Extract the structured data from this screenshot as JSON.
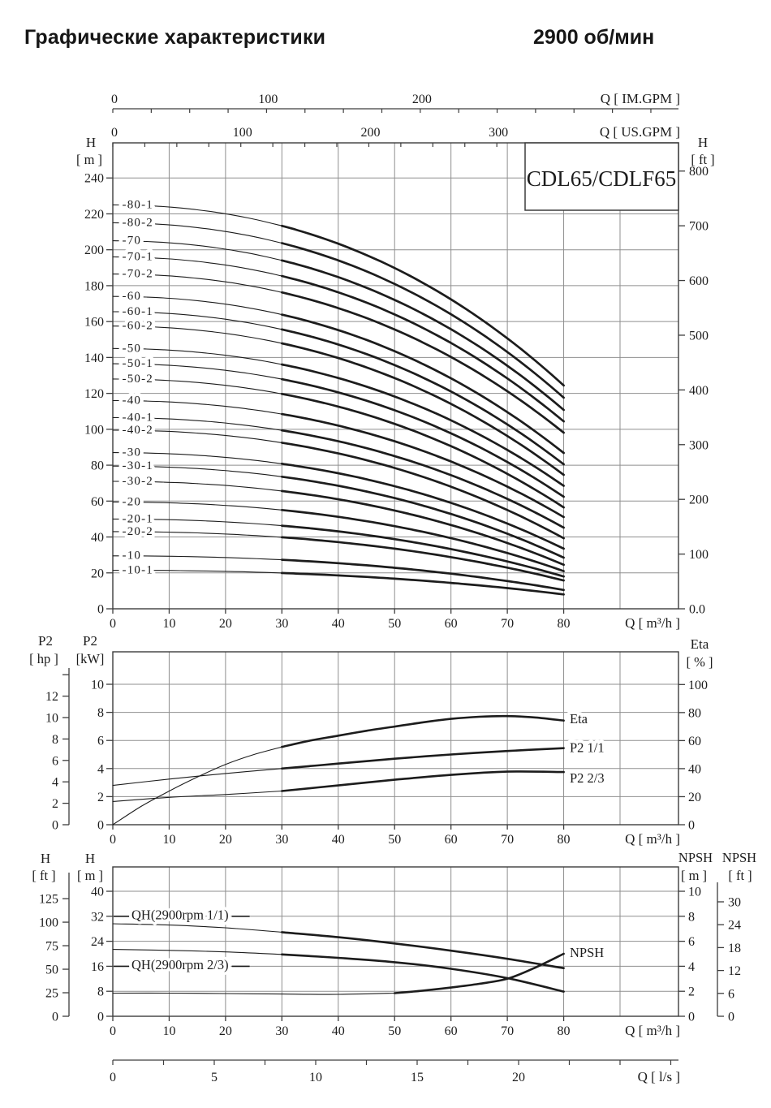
{
  "header": {
    "title": "Графические характеристики",
    "rpm": "2900 об/мин"
  },
  "pump_model": "CDL65/CDLF65",
  "colors": {
    "ink": "#1c1c1c",
    "grid": "#8f8f8f",
    "frame": "#3d3d3d",
    "background": "#ffffff"
  },
  "chart_data": [
    {
      "type": "line",
      "id": "qh-family",
      "title": "CDL65/CDLF65",
      "xlabel": "Q [ m³/h ]",
      "xlim": [
        0,
        100
      ],
      "x_ticks": [
        0,
        10,
        20,
        30,
        40,
        50,
        60,
        70,
        80
      ],
      "left_axis": {
        "title": "H",
        "unit": "[ m ]",
        "ylim": [
          0,
          260
        ],
        "ticks": [
          0,
          20,
          40,
          60,
          80,
          100,
          120,
          140,
          160,
          180,
          200,
          220,
          240
        ]
      },
      "right_axis": {
        "title": "H",
        "unit": "[ ft ]",
        "ticks": [
          {
            "v": 800,
            "label": "800"
          },
          {
            "v": 700,
            "label": "700"
          },
          {
            "v": 600,
            "label": "600"
          },
          {
            "v": 500,
            "label": "500"
          },
          {
            "v": 400,
            "label": "400"
          },
          {
            "v": 300,
            "label": "300"
          },
          {
            "v": 200,
            "label": "200"
          },
          {
            "v": 100,
            "label": "100"
          },
          {
            "v": 0,
            "label": "0.0"
          }
        ]
      },
      "top_axes": [
        {
          "label": "Q [ IM.GPM ]",
          "major_ticks": [
            0,
            100,
            200
          ],
          "minor_step_units": 25,
          "units_per_m3h": 3.66615
        },
        {
          "label": "Q [ US.GPM ]",
          "major_ticks": [
            0,
            100,
            200,
            300
          ],
          "minor_step_units": 25,
          "units_per_m3h": 4.40287
        }
      ],
      "bold_from_q": 30,
      "series": [
        {
          "name": "-80-1",
          "h0_m": 225,
          "h80_m": 124.4
        },
        {
          "name": "-80-2",
          "h0_m": 215,
          "h80_m": 117.6
        },
        {
          "name": "-70",
          "h0_m": 205,
          "h80_m": 110.8
        },
        {
          "name": "-70-1",
          "h0_m": 196,
          "h80_m": 104.4
        },
        {
          "name": "-70-2",
          "h0_m": 186.5,
          "h80_m": 98.1
        },
        {
          "name": "-60",
          "h0_m": 174,
          "h80_m": 86.8
        },
        {
          "name": "-60-1",
          "h0_m": 165.5,
          "h80_m": 80.5
        },
        {
          "name": "-60-2",
          "h0_m": 157.5,
          "h80_m": 74.6
        },
        {
          "name": "-50",
          "h0_m": 145,
          "h80_m": 68.5
        },
        {
          "name": "-50-1",
          "h0_m": 136.5,
          "h80_m": 62.4
        },
        {
          "name": "-50-2",
          "h0_m": 128,
          "h80_m": 56.5
        },
        {
          "name": "-40",
          "h0_m": 116,
          "h80_m": 51.1
        },
        {
          "name": "-40-1",
          "h0_m": 106.5,
          "h80_m": 45.2
        },
        {
          "name": "-40-2",
          "h0_m": 99.5,
          "h80_m": 39.3
        },
        {
          "name": "-30",
          "h0_m": 87,
          "h80_m": 33.5
        },
        {
          "name": "-30-1",
          "h0_m": 79.5,
          "h80_m": 28.5
        },
        {
          "name": "-30-2",
          "h0_m": 71,
          "h80_m": 24.5
        },
        {
          "name": "-20",
          "h0_m": 59.5,
          "h80_m": 21.0
        },
        {
          "name": "-20-1",
          "h0_m": 50,
          "h80_m": 18.0
        },
        {
          "name": "-20-2",
          "h0_m": 43,
          "h80_m": 15.8
        },
        {
          "name": "-10",
          "h0_m": 29.5,
          "h80_m": 10.5
        },
        {
          "name": "-10-1",
          "h0_m": 21.5,
          "h80_m": 8.0
        }
      ]
    },
    {
      "type": "line",
      "id": "power-efficiency",
      "xlabel": "Q [ m³/h ]",
      "x_ticks": [
        0,
        10,
        20,
        30,
        40,
        50,
        60,
        70,
        80
      ],
      "left_axis_outer": {
        "title": "P2",
        "unit": "[ hp ]",
        "ticks": [
          0,
          2,
          4,
          6,
          8,
          10,
          12
        ]
      },
      "left_axis_inner": {
        "title": "P2",
        "unit": "[kW]",
        "ticks": [
          0,
          2,
          4,
          6,
          8,
          10
        ]
      },
      "right_axis": {
        "title": "Eta",
        "unit": "[ % ]",
        "ticks": [
          0,
          20,
          40,
          60,
          80,
          100
        ]
      },
      "bold_from_q": 30,
      "series": [
        {
          "name": "Eta",
          "unit": "%",
          "points": [
            [
              0,
              0
            ],
            [
              5,
              13
            ],
            [
              10,
              24
            ],
            [
              15,
              34
            ],
            [
              20,
              43
            ],
            [
              25,
              50
            ],
            [
              30,
              55.5
            ],
            [
              35,
              60
            ],
            [
              40,
              63.5
            ],
            [
              45,
              67
            ],
            [
              50,
              70
            ],
            [
              55,
              73
            ],
            [
              60,
              75.5
            ],
            [
              65,
              77
            ],
            [
              70,
              77.5
            ],
            [
              75,
              76.5
            ],
            [
              80,
              74.3
            ]
          ]
        },
        {
          "name": "P2  1/1",
          "unit": "kW",
          "points": [
            [
              0,
              2.8
            ],
            [
              10,
              3.25
            ],
            [
              20,
              3.65
            ],
            [
              30,
              4.0
            ],
            [
              40,
              4.35
            ],
            [
              50,
              4.7
            ],
            [
              60,
              5.0
            ],
            [
              70,
              5.25
            ],
            [
              80,
              5.45
            ]
          ]
        },
        {
          "name": "P2  2/3",
          "unit": "kW",
          "points": [
            [
              0,
              1.65
            ],
            [
              10,
              1.95
            ],
            [
              20,
              2.15
            ],
            [
              30,
              2.4
            ],
            [
              40,
              2.8
            ],
            [
              50,
              3.2
            ],
            [
              60,
              3.55
            ],
            [
              70,
              3.78
            ],
            [
              80,
              3.75
            ]
          ]
        }
      ]
    },
    {
      "type": "line",
      "id": "qh-npsh",
      "xlabel": "Q [ m³/h ]",
      "x_ticks": [
        0,
        10,
        20,
        30,
        40,
        50,
        60,
        70,
        80
      ],
      "left_axis_outer": {
        "title": "H",
        "unit": "[ ft ]",
        "ticks": [
          0,
          25,
          50,
          75,
          100,
          125
        ]
      },
      "left_axis_inner": {
        "title": "H",
        "unit": "[ m ]",
        "ticks": [
          0,
          8,
          16,
          24,
          32,
          40
        ]
      },
      "right_axis_inner": {
        "title": "NPSH",
        "unit": "[ m ]",
        "ticks": [
          0,
          2,
          4,
          6,
          8,
          10
        ]
      },
      "right_axis_outer": {
        "title": "NPSH",
        "unit": "[ ft ]",
        "ticks": [
          0,
          6,
          12,
          18,
          24,
          30
        ]
      },
      "bottom_axis_lps": {
        "label": "Q [ l/s ]",
        "ticks": [
          0,
          5,
          10,
          15,
          20
        ],
        "minor_step": 2.5
      },
      "bold_from_q": 30,
      "series": [
        {
          "name": "QH(2900rpm 1/1)",
          "unit": "m",
          "points": [
            [
              0,
              29.6
            ],
            [
              10,
              29.2
            ],
            [
              20,
              28.3
            ],
            [
              30,
              26.9
            ],
            [
              40,
              25.3
            ],
            [
              50,
              23.3
            ],
            [
              60,
              21.0
            ],
            [
              70,
              18.4
            ],
            [
              80,
              15.4
            ]
          ]
        },
        {
          "name": "QH(2900rpm 2/3)",
          "unit": "m",
          "points": [
            [
              0,
              21.4
            ],
            [
              10,
              21.1
            ],
            [
              20,
              20.6
            ],
            [
              30,
              19.8
            ],
            [
              40,
              18.7
            ],
            [
              50,
              17.3
            ],
            [
              60,
              15.2
            ],
            [
              70,
              12.2
            ],
            [
              80,
              7.9
            ]
          ]
        },
        {
          "name": "NPSH",
          "unit": "m",
          "points": [
            [
              0,
              1.85
            ],
            [
              10,
              1.85
            ],
            [
              20,
              1.82
            ],
            [
              30,
              1.78
            ],
            [
              40,
              1.75
            ],
            [
              50,
              1.85
            ],
            [
              55,
              2.05
            ],
            [
              60,
              2.3
            ],
            [
              65,
              2.6
            ],
            [
              70,
              3.0
            ],
            [
              75,
              3.9
            ],
            [
              80,
              5.0
            ]
          ]
        }
      ]
    }
  ]
}
